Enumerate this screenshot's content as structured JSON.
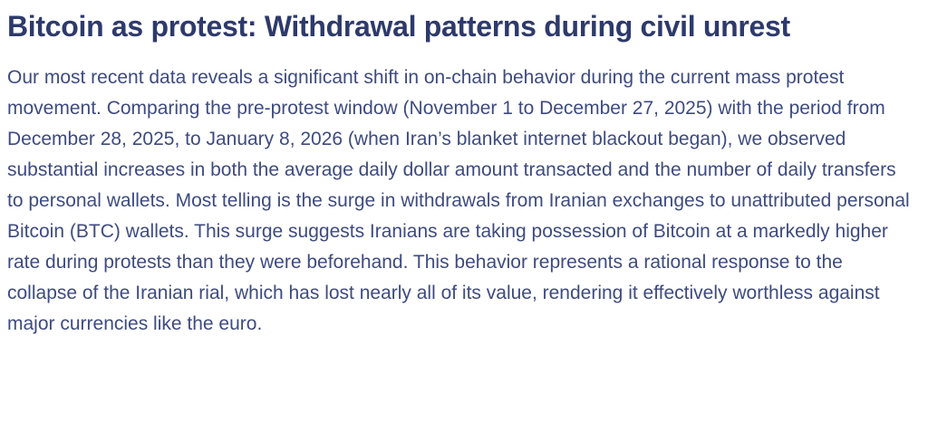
{
  "article": {
    "title": "Bitcoin as protest: Withdrawal patterns during civil unrest",
    "body": "Our most recent data reveals a significant shift in on-chain behavior during the current mass protest movement. Comparing the pre-protest window (November 1 to December 27, 2025) with the period from December 28, 2025, to January 8, 2026 (when Iran’s blanket internet blackout began), we observed substantial increases in both the average daily dollar amount transacted and the number of daily transfers to personal wallets. Most telling is the surge in withdrawals from Iranian exchanges to unattributed personal Bitcoin (BTC) wallets. This surge suggests Iranians are taking possession of Bitcoin at a markedly higher rate during protests than they were beforehand. This behavior represents a rational response to the collapse of the Iranian rial, which has lost nearly all of its value, rendering it effectively worthless against major currencies like the euro.",
    "colors": {
      "heading": "#2d3a6b",
      "body_text": "#3e4b80",
      "background": "#ffffff"
    }
  }
}
